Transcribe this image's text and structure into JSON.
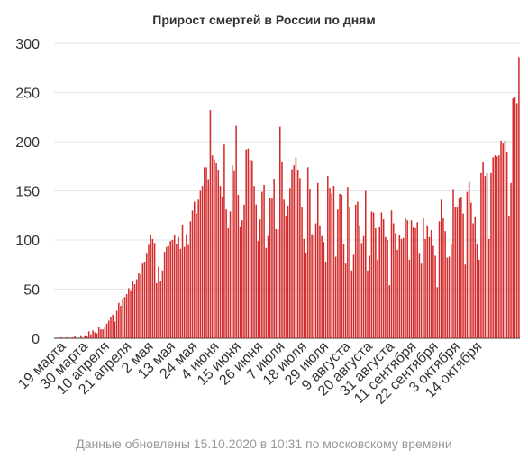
{
  "chart_data": {
    "type": "bar",
    "title": "Прирост смертей в России по дням",
    "xlabel": "",
    "ylabel": "",
    "ylim": [
      0,
      300
    ],
    "yticks": [
      0,
      50,
      100,
      150,
      200,
      250,
      300
    ],
    "grid": true,
    "start_date": "2020-03-16",
    "end_date": "2020-10-15",
    "xtick_labels": [
      "19 марта",
      "30 марта",
      "10 апреля",
      "21 апреля",
      "2 мая",
      "13 мая",
      "24 мая",
      "4 июня",
      "15 июня",
      "26 июня",
      "7 июля",
      "18 июля",
      "29 июля",
      "9 августа",
      "20 августа",
      "31 августа",
      "11 сентября",
      "22 сентября",
      "3 октября",
      "14 октября"
    ],
    "values": [
      0,
      0,
      0,
      1,
      0,
      0,
      1,
      0,
      0,
      1,
      2,
      0,
      0,
      3,
      0,
      3,
      2,
      7,
      4,
      8,
      6,
      5,
      11,
      9,
      9,
      12,
      15,
      18,
      22,
      24,
      17,
      28,
      36,
      33,
      40,
      42,
      45,
      51,
      48,
      58,
      55,
      60,
      66,
      65,
      76,
      78,
      86,
      95,
      105,
      101,
      97,
      56,
      73,
      58,
      69,
      88,
      93,
      94,
      99,
      100,
      105,
      96,
      103,
      91,
      115,
      93,
      106,
      95,
      119,
      130,
      139,
      127,
      141,
      150,
      155,
      174,
      174,
      161,
      232,
      186,
      182,
      178,
      171,
      155,
      144,
      197,
      131,
      112,
      129,
      176,
      170,
      216,
      146,
      113,
      120,
      136,
      192,
      193,
      182,
      181,
      155,
      136,
      99,
      121,
      149,
      156,
      92,
      104,
      143,
      142,
      162,
      111,
      111,
      215,
      179,
      141,
      124,
      135,
      153,
      172,
      176,
      184,
      171,
      163,
      133,
      101,
      87,
      174,
      152,
      106,
      105,
      117,
      158,
      114,
      104,
      98,
      78,
      165,
      153,
      147,
      155,
      83,
      131,
      147,
      146,
      96,
      76,
      154,
      133,
      69,
      85,
      136,
      139,
      114,
      97,
      104,
      150,
      69,
      84,
      129,
      128,
      112,
      80,
      113,
      128,
      121,
      103,
      100,
      54,
      130,
      117,
      107,
      90,
      105,
      101,
      102,
      122,
      120,
      80,
      120,
      113,
      112,
      118,
      86,
      76,
      122,
      101,
      114,
      103,
      110,
      94,
      84,
      52,
      119,
      141,
      122,
      109,
      82,
      83,
      96,
      151,
      133,
      134,
      142,
      144,
      127,
      75,
      149,
      159,
      138,
      117,
      123,
      96,
      80,
      168,
      179,
      165,
      168,
      101,
      168,
      184,
      186,
      185,
      186,
      201,
      198,
      201,
      190,
      124,
      158,
      244,
      245,
      239,
      286
    ]
  },
  "footer": {
    "text": "Данные обновлены 15.10.2020 в 10:31 по московскому времени"
  },
  "colors": {
    "bar": "#d42c2c",
    "grid": "#e6e6e6",
    "axis": "#333333",
    "footer": "#999999"
  }
}
